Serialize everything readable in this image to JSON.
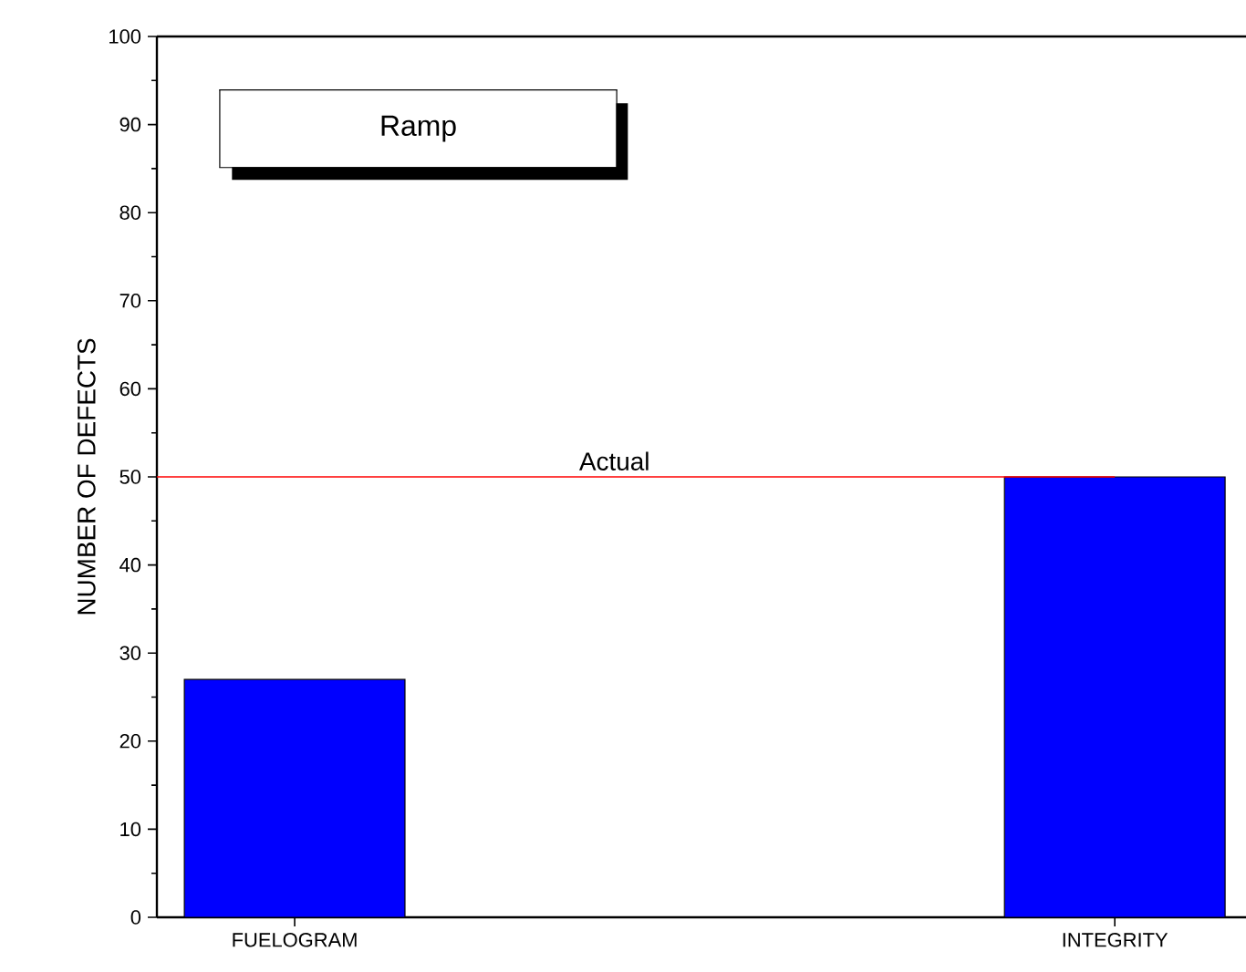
{
  "chart_data": {
    "type": "bar",
    "title": "Ramp",
    "ylabel": "NUMBER OF DEFECTS",
    "categories": [
      "FUELOGRAM",
      "INTEGRITY"
    ],
    "values": [
      27,
      50
    ],
    "color": "#0000ff",
    "ylim": [
      0,
      100
    ],
    "yticks": [
      0,
      10,
      20,
      30,
      40,
      50,
      60,
      70,
      80,
      90,
      100
    ],
    "ref_lines": [
      {
        "axis": "y",
        "value": 50,
        "label": "Actual",
        "color": "#ff0000"
      }
    ]
  }
}
